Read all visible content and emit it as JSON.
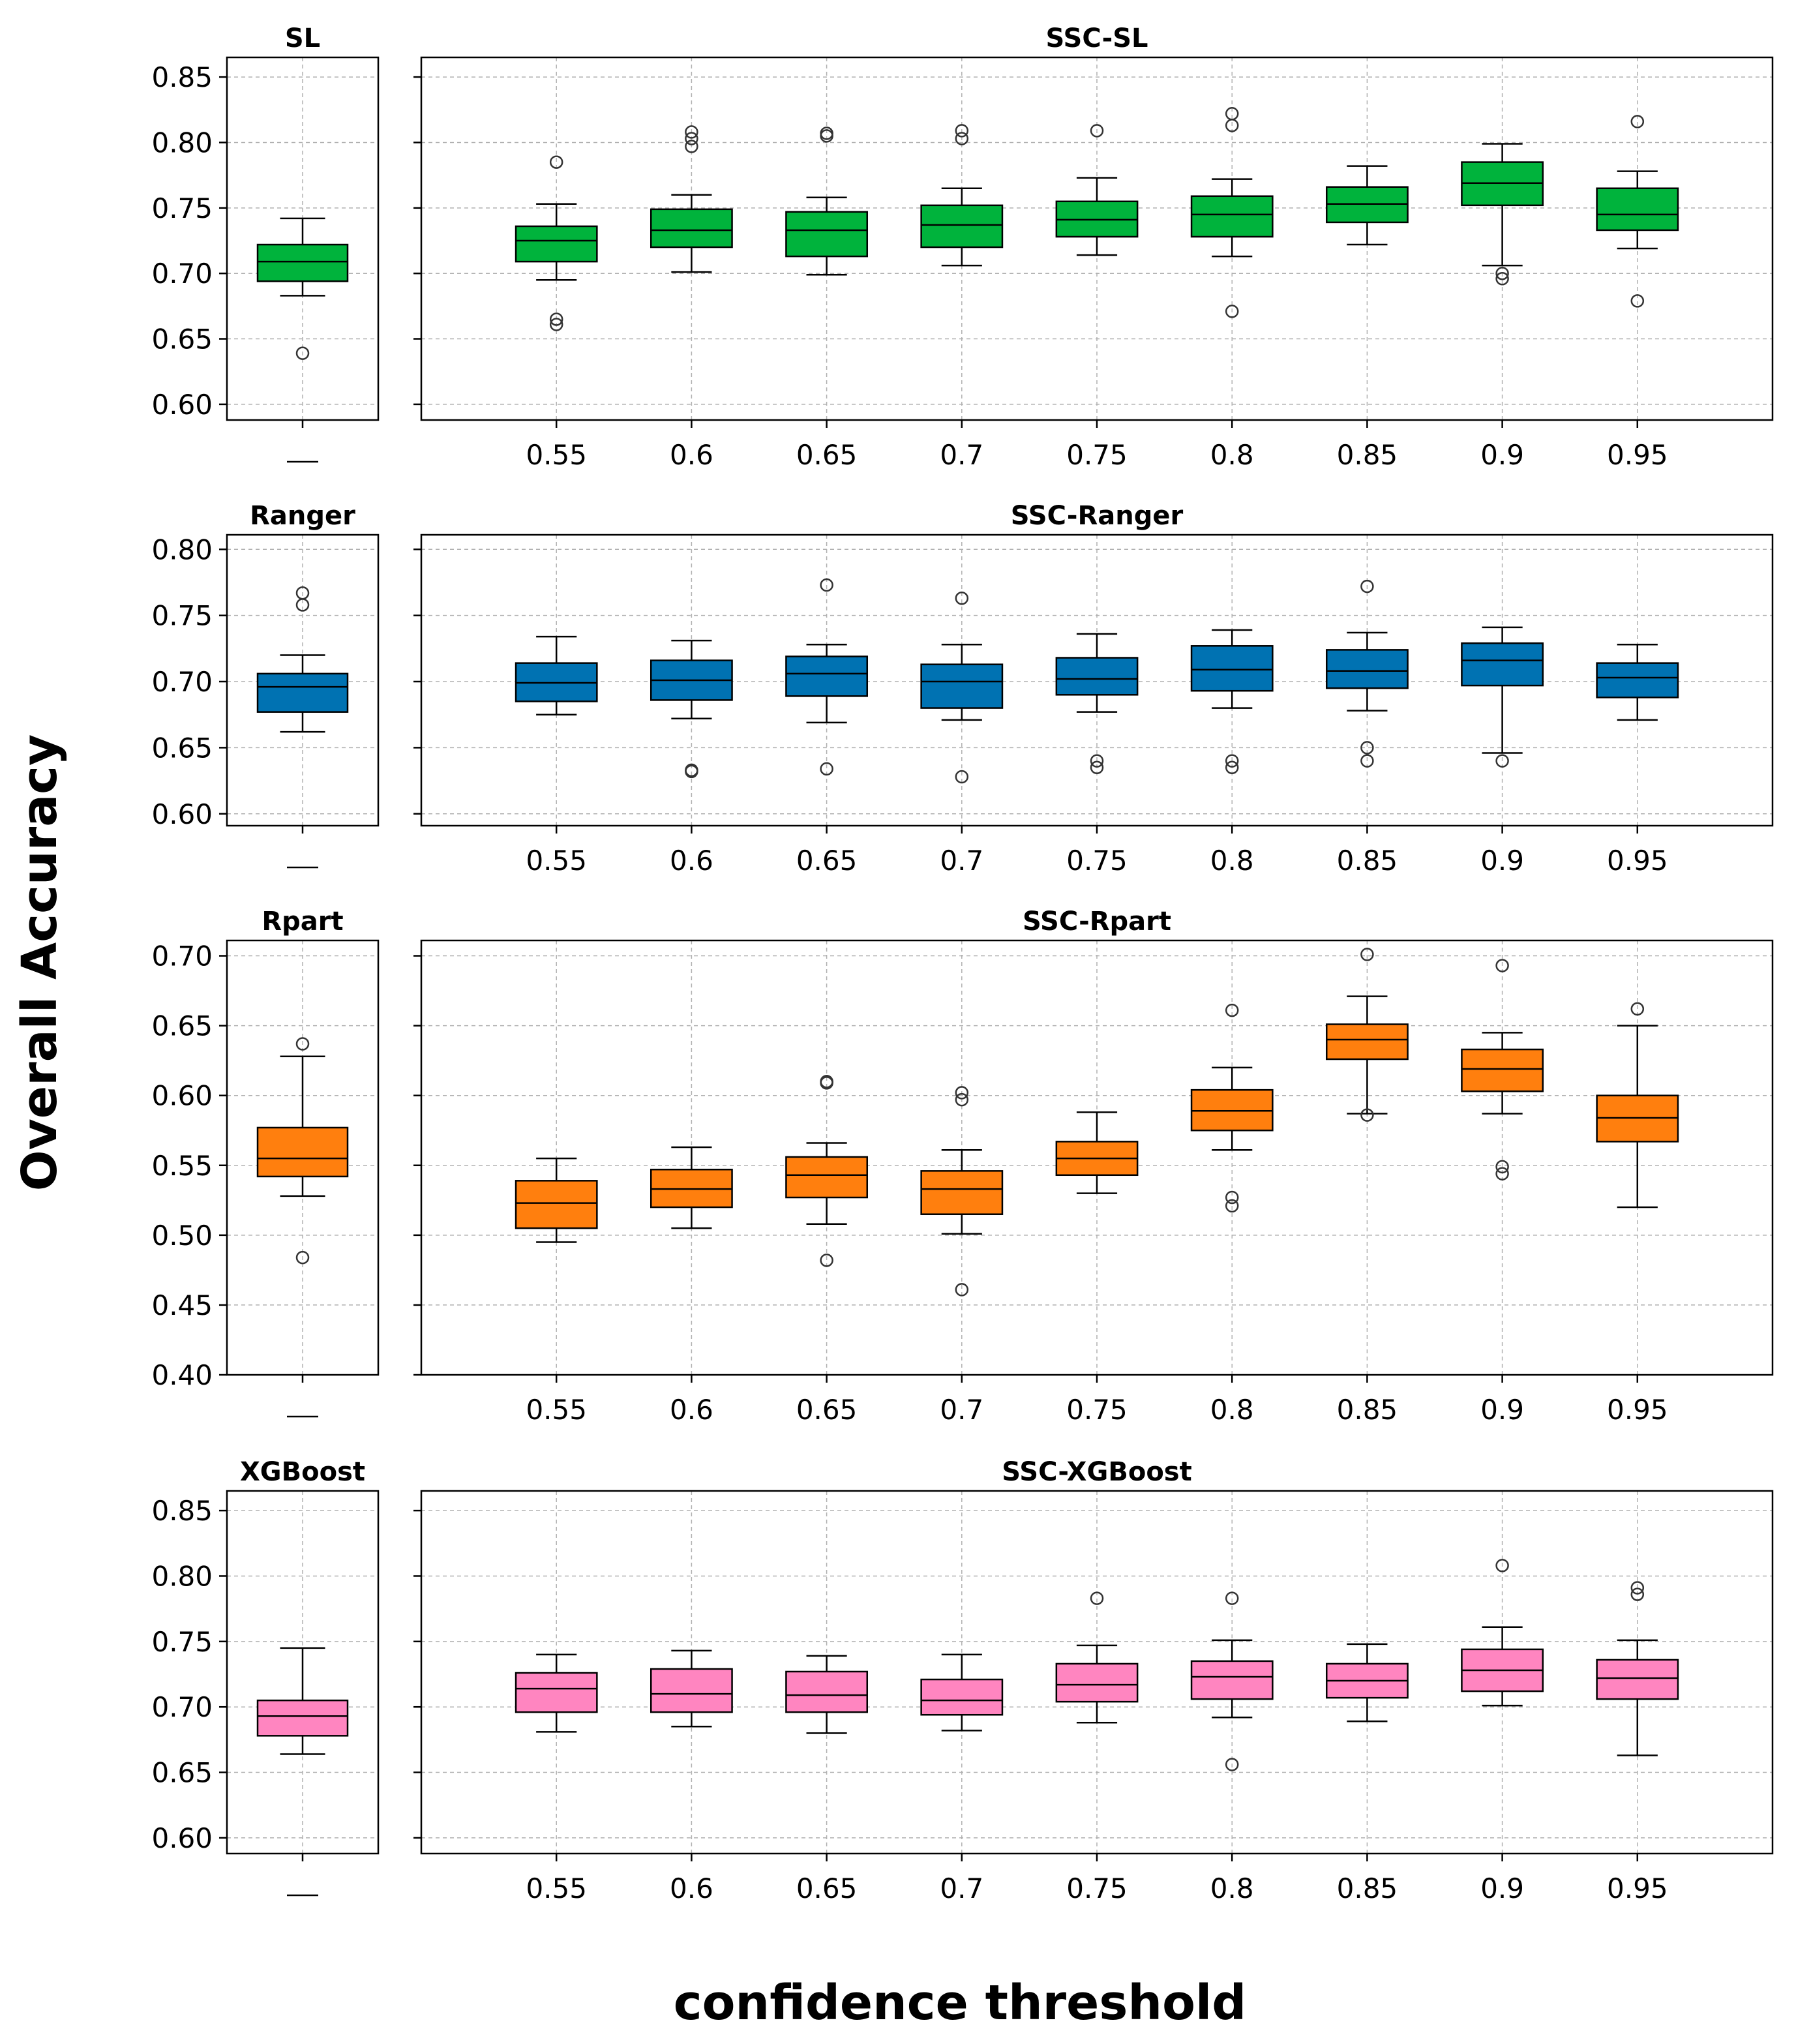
{
  "figure": {
    "xlabel": "confidence threshold",
    "ylabel": "Overall Accuracy"
  },
  "chart_data": [
    {
      "type": "box",
      "title": "SL",
      "color": "#00b33c",
      "ylim": [
        0.588,
        0.865
      ],
      "yticks": [
        "0.60",
        "0.65",
        "0.70",
        "0.75",
        "0.80",
        "0.85"
      ],
      "categories": [
        ""
      ],
      "boxes": [
        {
          "whislo": 0.683,
          "q1": 0.694,
          "med": 0.709,
          "q3": 0.722,
          "whishi": 0.742,
          "fliers": [
            0.639
          ]
        }
      ]
    },
    {
      "type": "box",
      "title": "SSC-SL",
      "color": "#00b33c",
      "ylim": [
        0.588,
        0.865
      ],
      "yticks": [
        "0.60",
        "0.65",
        "0.70",
        "0.75",
        "0.80",
        "0.85"
      ],
      "categories": [
        "0.55",
        "0.6",
        "0.65",
        "0.7",
        "0.75",
        "0.8",
        "0.85",
        "0.9",
        "0.95"
      ],
      "boxes": [
        {
          "whislo": 0.695,
          "q1": 0.709,
          "med": 0.725,
          "q3": 0.736,
          "whishi": 0.753,
          "fliers": [
            0.785,
            0.665,
            0.661
          ]
        },
        {
          "whislo": 0.701,
          "q1": 0.72,
          "med": 0.733,
          "q3": 0.749,
          "whishi": 0.76,
          "fliers": [
            0.808,
            0.803,
            0.797
          ]
        },
        {
          "whislo": 0.699,
          "q1": 0.713,
          "med": 0.733,
          "q3": 0.747,
          "whishi": 0.758,
          "fliers": [
            0.807,
            0.805
          ]
        },
        {
          "whislo": 0.706,
          "q1": 0.72,
          "med": 0.737,
          "q3": 0.752,
          "whishi": 0.765,
          "fliers": [
            0.809,
            0.803
          ]
        },
        {
          "whislo": 0.714,
          "q1": 0.728,
          "med": 0.741,
          "q3": 0.755,
          "whishi": 0.773,
          "fliers": [
            0.809
          ]
        },
        {
          "whislo": 0.713,
          "q1": 0.728,
          "med": 0.745,
          "q3": 0.759,
          "whishi": 0.772,
          "fliers": [
            0.822,
            0.813,
            0.671
          ]
        },
        {
          "whislo": 0.722,
          "q1": 0.739,
          "med": 0.753,
          "q3": 0.766,
          "whishi": 0.782,
          "fliers": []
        },
        {
          "whislo": 0.706,
          "q1": 0.752,
          "med": 0.769,
          "q3": 0.785,
          "whishi": 0.799,
          "fliers": [
            0.7,
            0.696
          ]
        },
        {
          "whislo": 0.719,
          "q1": 0.733,
          "med": 0.745,
          "q3": 0.765,
          "whishi": 0.778,
          "fliers": [
            0.816,
            0.679
          ]
        }
      ]
    },
    {
      "type": "box",
      "title": "Ranger",
      "color": "#0072b2",
      "ylim": [
        0.591,
        0.811
      ],
      "yticks": [
        "0.60",
        "0.65",
        "0.70",
        "0.75",
        "0.80"
      ],
      "categories": [
        ""
      ],
      "boxes": [
        {
          "whislo": 0.662,
          "q1": 0.677,
          "med": 0.696,
          "q3": 0.706,
          "whishi": 0.72,
          "fliers": [
            0.767,
            0.758
          ]
        }
      ]
    },
    {
      "type": "box",
      "title": "SSC-Ranger",
      "color": "#0072b2",
      "ylim": [
        0.591,
        0.811
      ],
      "yticks": [
        "0.60",
        "0.65",
        "0.70",
        "0.75",
        "0.80"
      ],
      "categories": [
        "0.55",
        "0.6",
        "0.65",
        "0.7",
        "0.75",
        "0.8",
        "0.85",
        "0.9",
        "0.95"
      ],
      "boxes": [
        {
          "whislo": 0.675,
          "q1": 0.685,
          "med": 0.699,
          "q3": 0.714,
          "whishi": 0.734,
          "fliers": []
        },
        {
          "whislo": 0.672,
          "q1": 0.686,
          "med": 0.701,
          "q3": 0.716,
          "whishi": 0.731,
          "fliers": [
            0.633,
            0.632
          ]
        },
        {
          "whislo": 0.669,
          "q1": 0.689,
          "med": 0.706,
          "q3": 0.719,
          "whishi": 0.728,
          "fliers": [
            0.773,
            0.634
          ]
        },
        {
          "whislo": 0.671,
          "q1": 0.68,
          "med": 0.7,
          "q3": 0.713,
          "whishi": 0.728,
          "fliers": [
            0.763,
            0.628
          ]
        },
        {
          "whislo": 0.677,
          "q1": 0.69,
          "med": 0.702,
          "q3": 0.718,
          "whishi": 0.736,
          "fliers": [
            0.64,
            0.635
          ]
        },
        {
          "whislo": 0.68,
          "q1": 0.693,
          "med": 0.709,
          "q3": 0.727,
          "whishi": 0.739,
          "fliers": [
            0.64,
            0.635
          ]
        },
        {
          "whislo": 0.678,
          "q1": 0.695,
          "med": 0.708,
          "q3": 0.724,
          "whishi": 0.737,
          "fliers": [
            0.772,
            0.65,
            0.64
          ]
        },
        {
          "whislo": 0.646,
          "q1": 0.697,
          "med": 0.716,
          "q3": 0.729,
          "whishi": 0.741,
          "fliers": [
            0.64
          ]
        },
        {
          "whislo": 0.671,
          "q1": 0.688,
          "med": 0.703,
          "q3": 0.714,
          "whishi": 0.728,
          "fliers": []
        }
      ]
    },
    {
      "type": "box",
      "title": "Rpart",
      "color": "#ff7f0e",
      "ylim": [
        0.4,
        0.711
      ],
      "yticks": [
        "0.40",
        "0.45",
        "0.50",
        "0.55",
        "0.60",
        "0.65",
        "0.70"
      ],
      "categories": [
        ""
      ],
      "boxes": [
        {
          "whislo": 0.528,
          "q1": 0.542,
          "med": 0.555,
          "q3": 0.577,
          "whishi": 0.628,
          "fliers": [
            0.637,
            0.484
          ]
        }
      ]
    },
    {
      "type": "box",
      "title": "SSC-Rpart",
      "color": "#ff7f0e",
      "ylim": [
        0.4,
        0.711
      ],
      "yticks": [
        "0.40",
        "0.45",
        "0.50",
        "0.55",
        "0.60",
        "0.65",
        "0.70"
      ],
      "categories": [
        "0.55",
        "0.6",
        "0.65",
        "0.7",
        "0.75",
        "0.8",
        "0.85",
        "0.9",
        "0.95"
      ],
      "boxes": [
        {
          "whislo": 0.495,
          "q1": 0.505,
          "med": 0.523,
          "q3": 0.539,
          "whishi": 0.555,
          "fliers": []
        },
        {
          "whislo": 0.505,
          "q1": 0.52,
          "med": 0.533,
          "q3": 0.547,
          "whishi": 0.563,
          "fliers": []
        },
        {
          "whislo": 0.508,
          "q1": 0.527,
          "med": 0.543,
          "q3": 0.556,
          "whishi": 0.566,
          "fliers": [
            0.61,
            0.609,
            0.482
          ]
        },
        {
          "whislo": 0.501,
          "q1": 0.515,
          "med": 0.533,
          "q3": 0.546,
          "whishi": 0.561,
          "fliers": [
            0.602,
            0.597,
            0.461
          ]
        },
        {
          "whislo": 0.53,
          "q1": 0.543,
          "med": 0.555,
          "q3": 0.567,
          "whishi": 0.588,
          "fliers": []
        },
        {
          "whislo": 0.561,
          "q1": 0.575,
          "med": 0.589,
          "q3": 0.604,
          "whishi": 0.62,
          "fliers": [
            0.661,
            0.527,
            0.521
          ]
        },
        {
          "whislo": 0.587,
          "q1": 0.626,
          "med": 0.64,
          "q3": 0.651,
          "whishi": 0.671,
          "fliers": [
            0.701,
            0.586
          ]
        },
        {
          "whislo": 0.587,
          "q1": 0.603,
          "med": 0.619,
          "q3": 0.633,
          "whishi": 0.645,
          "fliers": [
            0.693,
            0.549,
            0.544
          ]
        },
        {
          "whislo": 0.52,
          "q1": 0.567,
          "med": 0.584,
          "q3": 0.6,
          "whishi": 0.65,
          "fliers": [
            0.662
          ]
        }
      ]
    },
    {
      "type": "box",
      "title": "XGBoost",
      "color": "#ff85c0",
      "ylim": [
        0.588,
        0.865
      ],
      "yticks": [
        "0.60",
        "0.65",
        "0.70",
        "0.75",
        "0.80",
        "0.85"
      ],
      "categories": [
        ""
      ],
      "boxes": [
        {
          "whislo": 0.664,
          "q1": 0.678,
          "med": 0.693,
          "q3": 0.705,
          "whishi": 0.745,
          "fliers": []
        }
      ]
    },
    {
      "type": "box",
      "title": "SSC-XGBoost",
      "color": "#ff85c0",
      "ylim": [
        0.588,
        0.865
      ],
      "yticks": [
        "0.60",
        "0.65",
        "0.70",
        "0.75",
        "0.80",
        "0.85"
      ],
      "categories": [
        "0.55",
        "0.6",
        "0.65",
        "0.7",
        "0.75",
        "0.8",
        "0.85",
        "0.9",
        "0.95"
      ],
      "boxes": [
        {
          "whislo": 0.681,
          "q1": 0.696,
          "med": 0.714,
          "q3": 0.726,
          "whishi": 0.74,
          "fliers": []
        },
        {
          "whislo": 0.685,
          "q1": 0.696,
          "med": 0.71,
          "q3": 0.729,
          "whishi": 0.743,
          "fliers": []
        },
        {
          "whislo": 0.68,
          "q1": 0.696,
          "med": 0.709,
          "q3": 0.727,
          "whishi": 0.739,
          "fliers": []
        },
        {
          "whislo": 0.682,
          "q1": 0.694,
          "med": 0.705,
          "q3": 0.721,
          "whishi": 0.74,
          "fliers": []
        },
        {
          "whislo": 0.688,
          "q1": 0.704,
          "med": 0.717,
          "q3": 0.733,
          "whishi": 0.747,
          "fliers": [
            0.783
          ]
        },
        {
          "whislo": 0.692,
          "q1": 0.706,
          "med": 0.723,
          "q3": 0.735,
          "whishi": 0.751,
          "fliers": [
            0.783,
            0.656
          ]
        },
        {
          "whislo": 0.689,
          "q1": 0.707,
          "med": 0.72,
          "q3": 0.733,
          "whishi": 0.748,
          "fliers": []
        },
        {
          "whislo": 0.701,
          "q1": 0.712,
          "med": 0.728,
          "q3": 0.744,
          "whishi": 0.761,
          "fliers": [
            0.808
          ]
        },
        {
          "whislo": 0.663,
          "q1": 0.706,
          "med": 0.722,
          "q3": 0.736,
          "whishi": 0.751,
          "fliers": [
            0.791,
            0.786
          ]
        }
      ]
    }
  ]
}
